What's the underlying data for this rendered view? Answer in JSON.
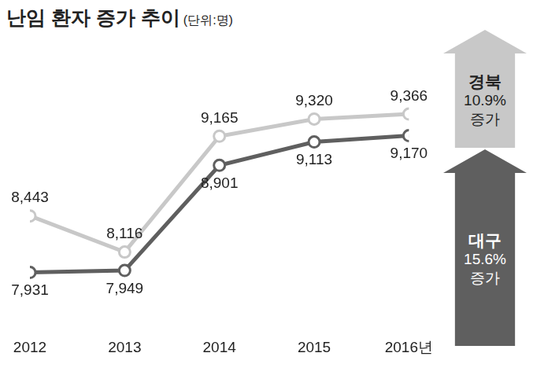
{
  "chart_data": {
    "type": "line",
    "title": "난임 환자 증가 추이",
    "subtitle": "(단위:명)",
    "categories": [
      "2012",
      "2013",
      "2014",
      "2015",
      "2016년"
    ],
    "series": [
      {
        "name": "경북",
        "color": "#c8c8c8",
        "values": [
          8443,
          8116,
          9165,
          9320,
          9366
        ],
        "value_labels": [
          "8,443",
          "8,116",
          "9,165",
          "9,320",
          "9,366"
        ]
      },
      {
        "name": "대구",
        "color": "#5f5f5f",
        "values": [
          7931,
          7949,
          8901,
          9113,
          9170
        ],
        "value_labels": [
          "7,931",
          "7,949",
          "8,901",
          "9,113",
          "9,170"
        ]
      }
    ],
    "ylim": [
      7400,
      9900
    ],
    "grid": false,
    "data_labels": true,
    "tick_labels": "x",
    "marker": "circle",
    "annotations": [
      {
        "series": "경북",
        "text": [
          "경북",
          "10.9%",
          "증가"
        ]
      },
      {
        "series": "대구",
        "text": [
          "대구",
          "15.6%",
          "증가"
        ]
      }
    ]
  }
}
